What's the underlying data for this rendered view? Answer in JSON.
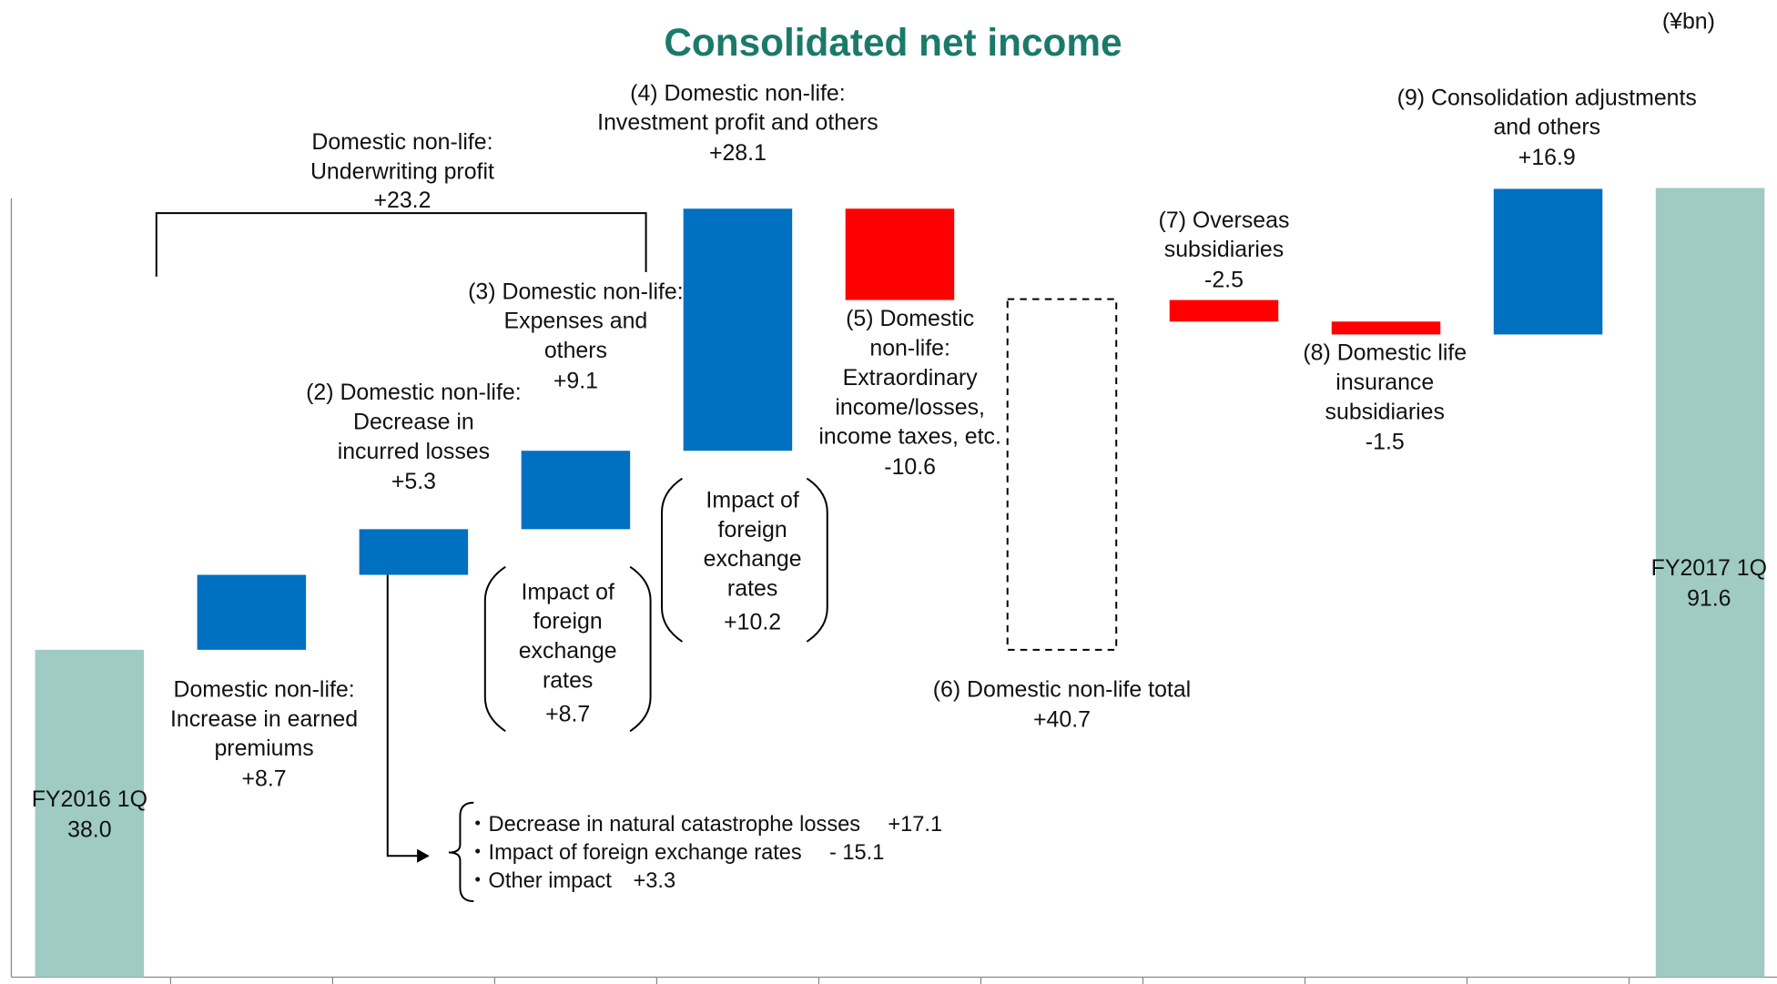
{
  "chart_data": {
    "type": "waterfall",
    "title": "Consolidated net income",
    "unit": "(¥bn)",
    "categories": [
      "FY2016 1Q",
      "Domestic non-life:\nIncrease in earned\npremiums",
      "(2) Domestic non-life:\nDecrease in\nincurred losses",
      "(3) Domestic non-life:\nExpenses and\nothers",
      "(4) Domestic non-life:\nInvestment profit and others",
      "(5) Domestic\nnon-life:\nExtraordinary\nincome/losses,\nincome taxes, etc.",
      "(6) Domestic non-life total",
      "(7) Overseas\nsubsidiaries",
      "(8) Domestic life\ninsurance\nsubsidiaries",
      "(9) Consolidation adjustments\nand others",
      "FY2017 1Q"
    ],
    "values": [
      38.0,
      8.7,
      5.3,
      9.1,
      28.1,
      -10.6,
      40.7,
      -2.5,
      -1.5,
      16.9,
      91.6
    ],
    "value_labels": [
      "38.0",
      "+8.7",
      "+5.3",
      "+9.1",
      "+28.1",
      "-10.6",
      "+40.7",
      "-2.5",
      "-1.5",
      "+16.9",
      "91.6"
    ],
    "measure": [
      "total",
      "relative",
      "relative",
      "relative",
      "relative",
      "relative",
      "subtotal",
      "relative",
      "relative",
      "relative",
      "total"
    ],
    "colors": {
      "increase": "#0070c0",
      "decrease": "#ff0000",
      "total": "#9fcbc2"
    },
    "annotations": {
      "underwriting": {
        "text": "Domestic non-life:\nUnderwriting profit",
        "value_label": "+23.2"
      },
      "fx_boxes": [
        {
          "text": "Impact of\nforeign\nexchange\nrates",
          "value_label": "+8.7"
        },
        {
          "text": "Impact of\nforeign\nexchange\nrates",
          "value_label": "+10.2"
        }
      ],
      "breakdown": [
        "・Decrease in natural catastrophe losses　 +17.1",
        "・Impact of foreign exchange rates　 - 15.1",
        "・Other impact　+3.3"
      ]
    }
  }
}
